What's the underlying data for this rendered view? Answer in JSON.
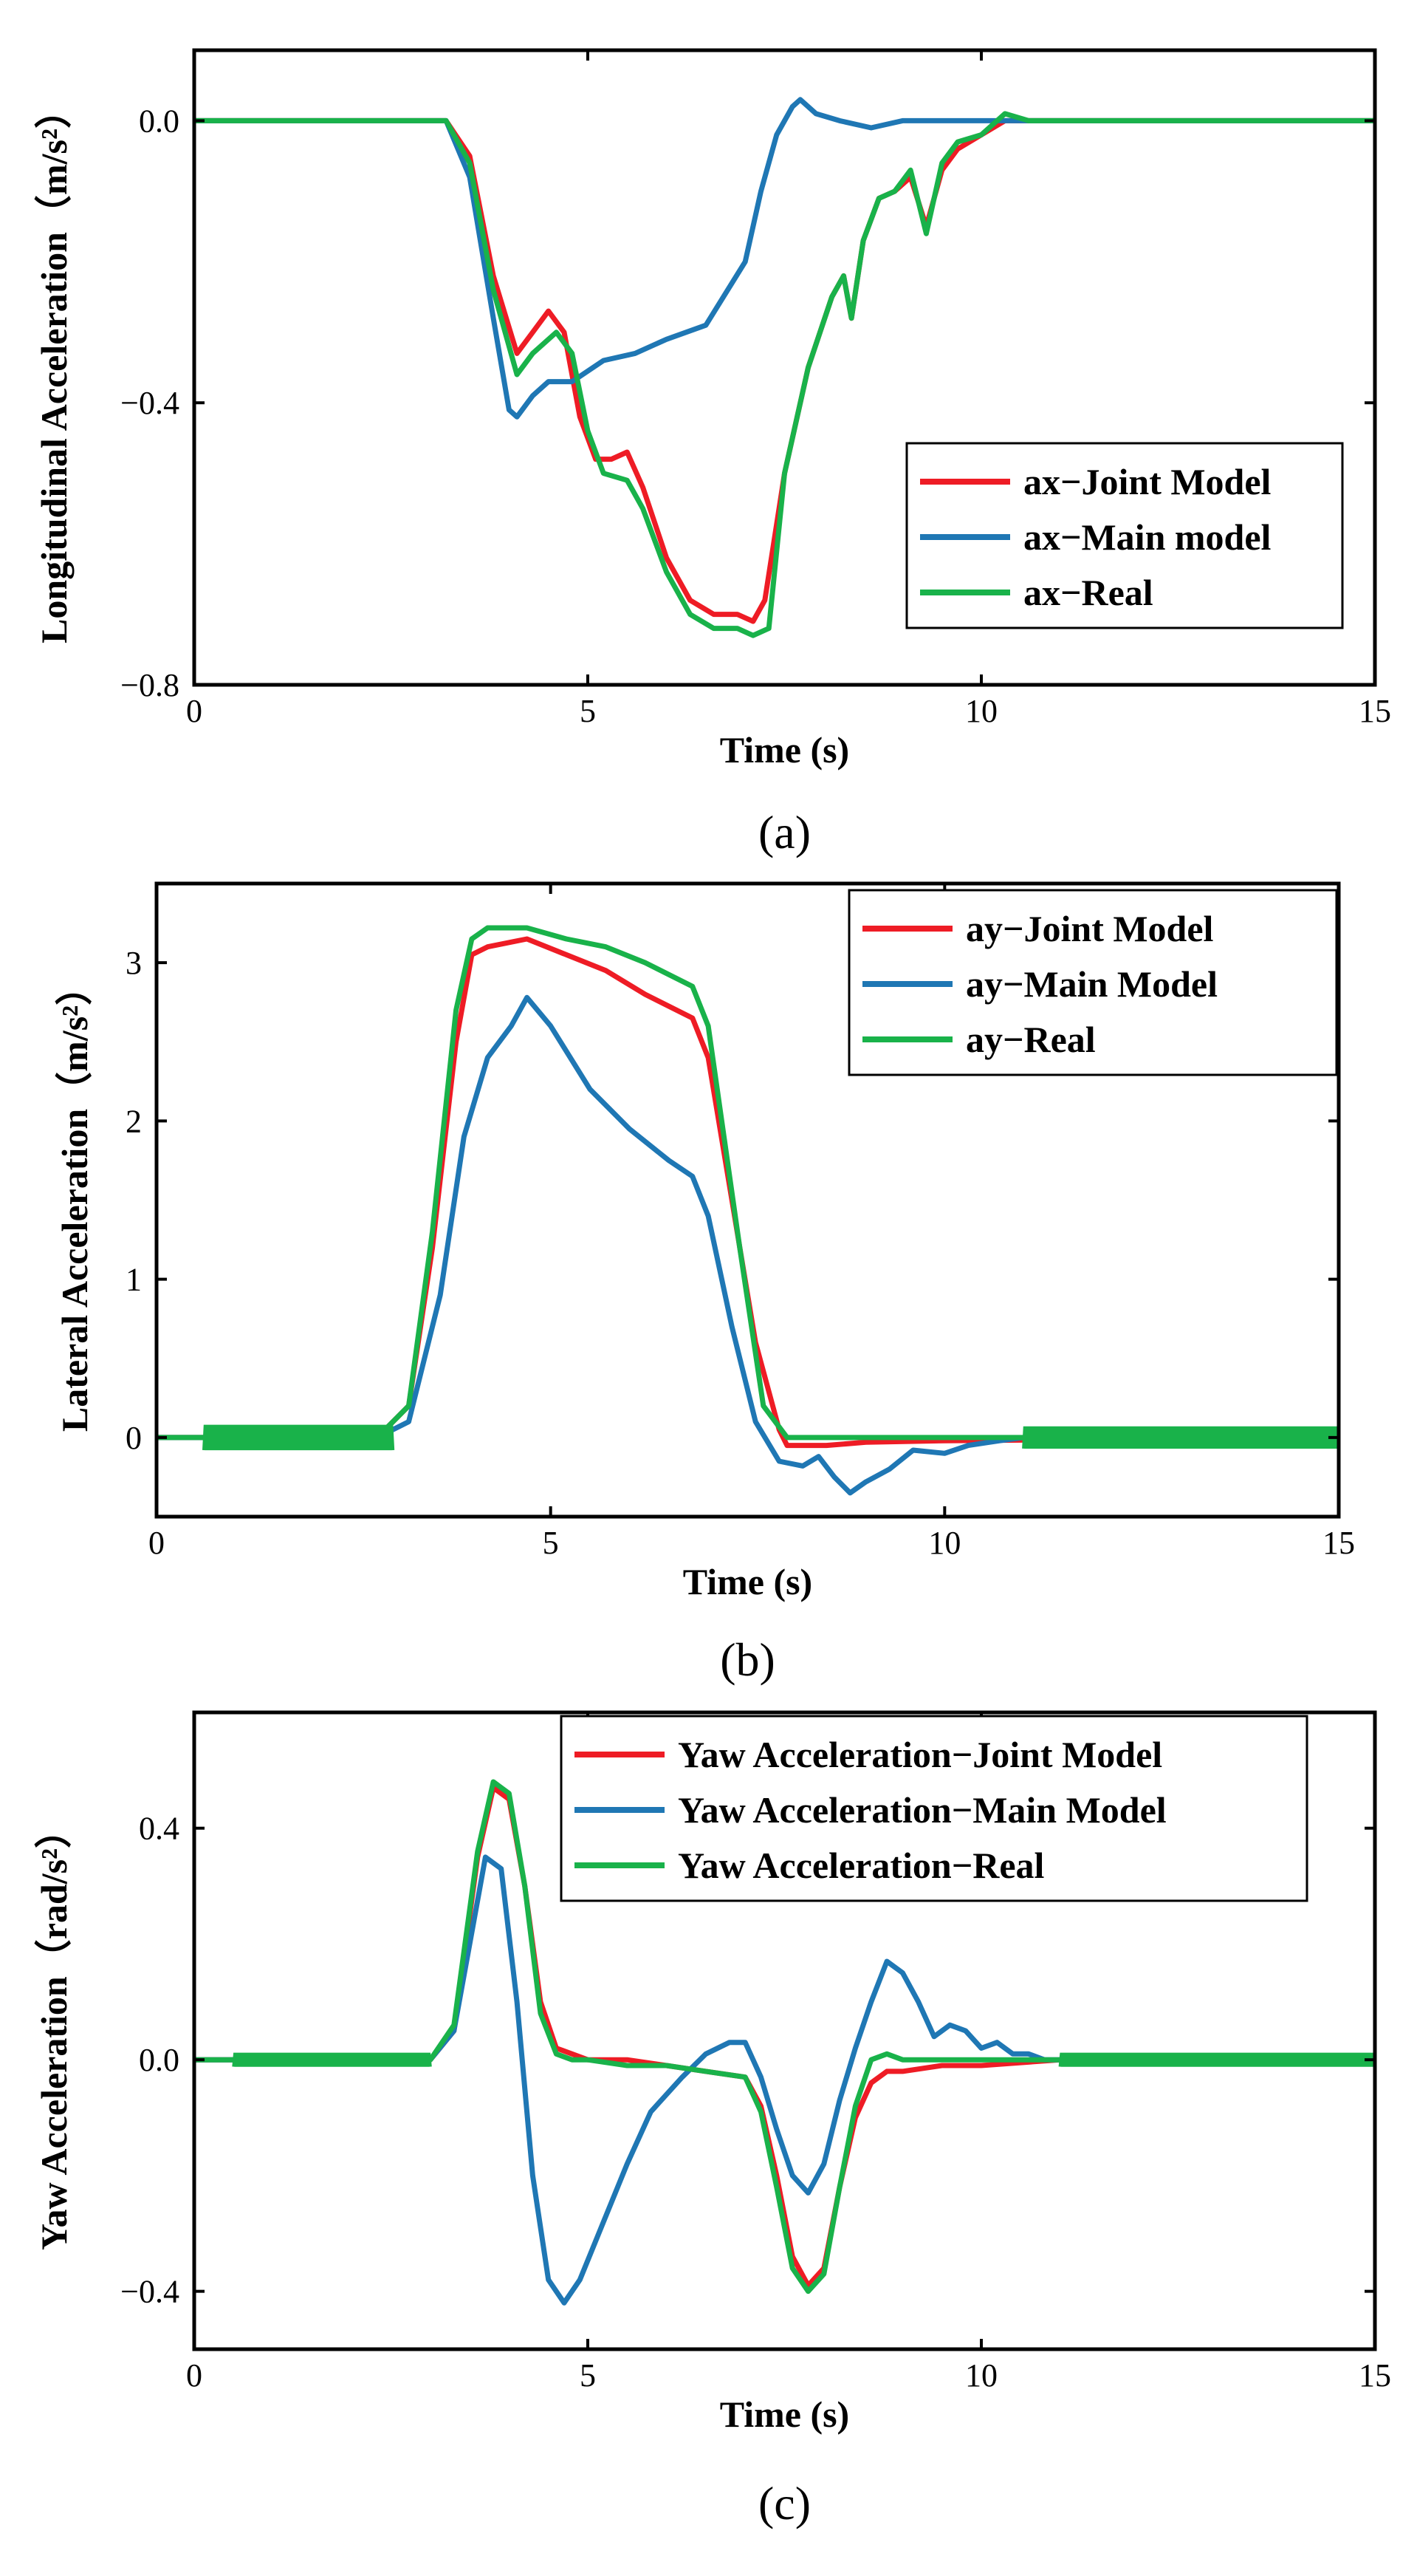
{
  "figure": {
    "colors": {
      "joint": "#ee1c25",
      "main": "#1f77b4",
      "real": "#19b24a",
      "frame": "#000000"
    }
  },
  "chart_data": [
    {
      "type": "line",
      "caption": "(a)",
      "xlabel": "Time (s)",
      "ylabel": "Longitudinal Acceleration（m/s²）",
      "xlim": [
        0,
        15
      ],
      "ylim": [
        -0.8,
        0.1
      ],
      "xticks": [
        0,
        5,
        10,
        15
      ],
      "yticks": [
        0.0,
        -0.4,
        -0.8
      ],
      "ytick_labels": [
        "0.0",
        "−0.4",
        "−0.8"
      ],
      "legend_position": "bottom-right",
      "series": [
        {
          "name": "ax−Joint Model",
          "color": "#ee1c25",
          "x": [
            0,
            3.2,
            3.5,
            3.8,
            4.1,
            4.3,
            4.5,
            4.7,
            4.9,
            5.1,
            5.3,
            5.5,
            5.7,
            6.0,
            6.3,
            6.6,
            6.9,
            7.1,
            7.25,
            7.5,
            7.8,
            8.1,
            8.25,
            8.35,
            8.5,
            8.7,
            8.9,
            9.1,
            9.3,
            9.5,
            9.7,
            10.0,
            10.3,
            10.6,
            11.0,
            15
          ],
          "values": [
            0,
            0,
            -0.05,
            -0.22,
            -0.33,
            -0.3,
            -0.27,
            -0.3,
            -0.42,
            -0.48,
            -0.48,
            -0.47,
            -0.52,
            -0.62,
            -0.68,
            -0.7,
            -0.7,
            -0.71,
            -0.68,
            -0.5,
            -0.35,
            -0.25,
            -0.22,
            -0.28,
            -0.17,
            -0.11,
            -0.1,
            -0.08,
            -0.15,
            -0.07,
            -0.04,
            -0.02,
            0.0,
            0.0,
            0.0,
            0
          ]
        },
        {
          "name": "ax−Main model",
          "color": "#1f77b4",
          "x": [
            0,
            3.2,
            3.5,
            3.8,
            4.0,
            4.1,
            4.3,
            4.5,
            4.8,
            5.2,
            5.6,
            6.0,
            6.5,
            7.0,
            7.2,
            7.4,
            7.6,
            7.7,
            7.9,
            8.2,
            8.6,
            9.0,
            15
          ],
          "values": [
            0,
            0,
            -0.08,
            -0.28,
            -0.41,
            -0.42,
            -0.39,
            -0.37,
            -0.37,
            -0.34,
            -0.33,
            -0.31,
            -0.29,
            -0.2,
            -0.1,
            -0.02,
            0.02,
            0.03,
            0.01,
            0.0,
            -0.01,
            0.0,
            0
          ]
        },
        {
          "name": "ax−Real",
          "color": "#19b24a",
          "x": [
            0,
            3.2,
            3.5,
            3.8,
            4.1,
            4.3,
            4.6,
            4.8,
            5.0,
            5.2,
            5.5,
            5.7,
            6.0,
            6.3,
            6.6,
            6.9,
            7.1,
            7.3,
            7.5,
            7.8,
            8.1,
            8.25,
            8.35,
            8.5,
            8.7,
            8.9,
            9.1,
            9.3,
            9.5,
            9.7,
            10.0,
            10.3,
            10.6,
            11.0,
            15
          ],
          "values": [
            0,
            0,
            -0.06,
            -0.24,
            -0.36,
            -0.33,
            -0.3,
            -0.33,
            -0.44,
            -0.5,
            -0.51,
            -0.55,
            -0.64,
            -0.7,
            -0.72,
            -0.72,
            -0.73,
            -0.72,
            -0.5,
            -0.35,
            -0.25,
            -0.22,
            -0.28,
            -0.17,
            -0.11,
            -0.1,
            -0.07,
            -0.16,
            -0.06,
            -0.03,
            -0.02,
            0.01,
            0.0,
            0.0,
            0
          ]
        }
      ]
    },
    {
      "type": "line",
      "caption": "(b)",
      "xlabel": "Time (s)",
      "ylabel": "Lateral Acceleration（m/s²）",
      "xlim": [
        0,
        15
      ],
      "ylim": [
        -0.5,
        3.5
      ],
      "xticks": [
        0,
        5,
        10,
        15
      ],
      "yticks": [
        0,
        1,
        2,
        3
      ],
      "ytick_labels": [
        "0",
        "1",
        "2",
        "3"
      ],
      "legend_position": "top-right",
      "series": [
        {
          "name": "ay−Joint Model",
          "color": "#ee1c25",
          "x": [
            0,
            2.8,
            3.2,
            3.5,
            3.8,
            4.0,
            4.2,
            4.7,
            5.2,
            5.7,
            6.2,
            6.8,
            7.0,
            7.3,
            7.6,
            7.9,
            8.0,
            8.5,
            9.0,
            10.0,
            15
          ],
          "values": [
            0,
            0,
            0.2,
            1.2,
            2.5,
            3.05,
            3.1,
            3.15,
            3.05,
            2.95,
            2.8,
            2.65,
            2.4,
            1.5,
            0.6,
            0.05,
            -0.05,
            -0.05,
            -0.03,
            -0.02,
            0
          ]
        },
        {
          "name": "ay−Main Model",
          "color": "#1f77b4",
          "x": [
            0,
            2.8,
            3.2,
            3.6,
            3.9,
            4.2,
            4.5,
            4.7,
            5.0,
            5.5,
            6.0,
            6.5,
            6.8,
            7.0,
            7.3,
            7.6,
            7.9,
            8.2,
            8.4,
            8.6,
            8.8,
            9.0,
            9.3,
            9.6,
            10.0,
            10.3,
            10.7,
            11.0,
            15
          ],
          "values": [
            0,
            0,
            0.1,
            0.9,
            1.9,
            2.4,
            2.6,
            2.78,
            2.6,
            2.2,
            1.95,
            1.75,
            1.65,
            1.4,
            0.7,
            0.1,
            -0.15,
            -0.18,
            -0.12,
            -0.25,
            -0.35,
            -0.28,
            -0.2,
            -0.08,
            -0.1,
            -0.05,
            -0.02,
            0.0,
            0
          ]
        },
        {
          "name": "ay−Real",
          "color": "#19b24a",
          "x": [
            0,
            2.8,
            3.2,
            3.5,
            3.8,
            4.0,
            4.2,
            4.7,
            5.2,
            5.7,
            6.2,
            6.8,
            7.0,
            7.4,
            7.7,
            8.0,
            8.5,
            9.0,
            10.0,
            15
          ],
          "values": [
            0,
            0,
            0.2,
            1.3,
            2.7,
            3.15,
            3.22,
            3.22,
            3.15,
            3.1,
            3.0,
            2.85,
            2.6,
            1.2,
            0.2,
            0.0,
            0.0,
            0.0,
            0.0,
            0
          ],
          "noise_band": [
            [
              0.6,
              3.0,
              0.08
            ],
            [
              11.0,
              15.0,
              0.07
            ]
          ]
        }
      ]
    },
    {
      "type": "line",
      "caption": "(c)",
      "xlabel": "Time (s)",
      "ylabel": "Yaw Acceleration（rad/s²）",
      "xlim": [
        0,
        15
      ],
      "ylim": [
        -0.5,
        0.6
      ],
      "xticks": [
        0,
        5,
        10,
        15
      ],
      "yticks": [
        0.4,
        0.0,
        -0.4
      ],
      "ytick_labels": [
        "0.4",
        "0.0",
        "−0.4"
      ],
      "legend_position": "top-right",
      "series": [
        {
          "name": "Yaw Acceleration−Joint Model",
          "color": "#ee1c25",
          "x": [
            0,
            3.0,
            3.3,
            3.6,
            3.8,
            4.0,
            4.2,
            4.4,
            4.6,
            4.8,
            5.0,
            5.5,
            6.0,
            6.5,
            7.0,
            7.2,
            7.4,
            7.6,
            7.8,
            8.0,
            8.2,
            8.4,
            8.6,
            8.8,
            9.0,
            9.5,
            10.0,
            11.0,
            15
          ],
          "values": [
            0,
            0,
            0.05,
            0.35,
            0.47,
            0.45,
            0.3,
            0.1,
            0.02,
            0.01,
            0.0,
            0.0,
            -0.01,
            -0.02,
            -0.03,
            -0.08,
            -0.2,
            -0.34,
            -0.39,
            -0.36,
            -0.22,
            -0.1,
            -0.04,
            -0.02,
            -0.02,
            -0.01,
            -0.01,
            0.0,
            0
          ]
        },
        {
          "name": "Yaw Acceleration−Main Model",
          "color": "#1f77b4",
          "x": [
            0,
            3.0,
            3.3,
            3.5,
            3.7,
            3.9,
            4.1,
            4.3,
            4.5,
            4.7,
            4.9,
            5.2,
            5.5,
            5.8,
            6.2,
            6.5,
            6.8,
            7.0,
            7.2,
            7.4,
            7.6,
            7.8,
            8.0,
            8.2,
            8.4,
            8.6,
            8.8,
            9.0,
            9.2,
            9.4,
            9.6,
            9.8,
            10.0,
            10.2,
            10.4,
            10.6,
            10.8,
            11.0,
            15
          ],
          "values": [
            0,
            0,
            0.05,
            0.2,
            0.35,
            0.33,
            0.1,
            -0.2,
            -0.38,
            -0.42,
            -0.38,
            -0.28,
            -0.18,
            -0.09,
            -0.03,
            0.01,
            0.03,
            0.03,
            -0.03,
            -0.12,
            -0.2,
            -0.23,
            -0.18,
            -0.07,
            0.02,
            0.1,
            0.17,
            0.15,
            0.1,
            0.04,
            0.06,
            0.05,
            0.02,
            0.03,
            0.01,
            0.01,
            0.0,
            0.0,
            0
          ]
        },
        {
          "name": "Yaw Acceleration−Real",
          "color": "#19b24a",
          "x": [
            0,
            3.0,
            3.3,
            3.6,
            3.8,
            4.0,
            4.2,
            4.4,
            4.6,
            4.8,
            5.0,
            5.5,
            6.0,
            6.5,
            7.0,
            7.2,
            7.4,
            7.6,
            7.8,
            8.0,
            8.2,
            8.4,
            8.6,
            8.8,
            9.0,
            9.5,
            10.0,
            11.0,
            15
          ],
          "values": [
            0,
            0,
            0.06,
            0.36,
            0.48,
            0.46,
            0.3,
            0.08,
            0.01,
            0.0,
            0.0,
            -0.01,
            -0.01,
            -0.02,
            -0.03,
            -0.09,
            -0.22,
            -0.36,
            -0.4,
            -0.37,
            -0.22,
            -0.08,
            0.0,
            0.01,
            0.0,
            0.0,
            0.0,
            0.0,
            0
          ],
          "noise_band": [
            [
              0.5,
              3.0,
              0.012
            ],
            [
              11.0,
              15.0,
              0.012
            ]
          ]
        }
      ]
    }
  ]
}
